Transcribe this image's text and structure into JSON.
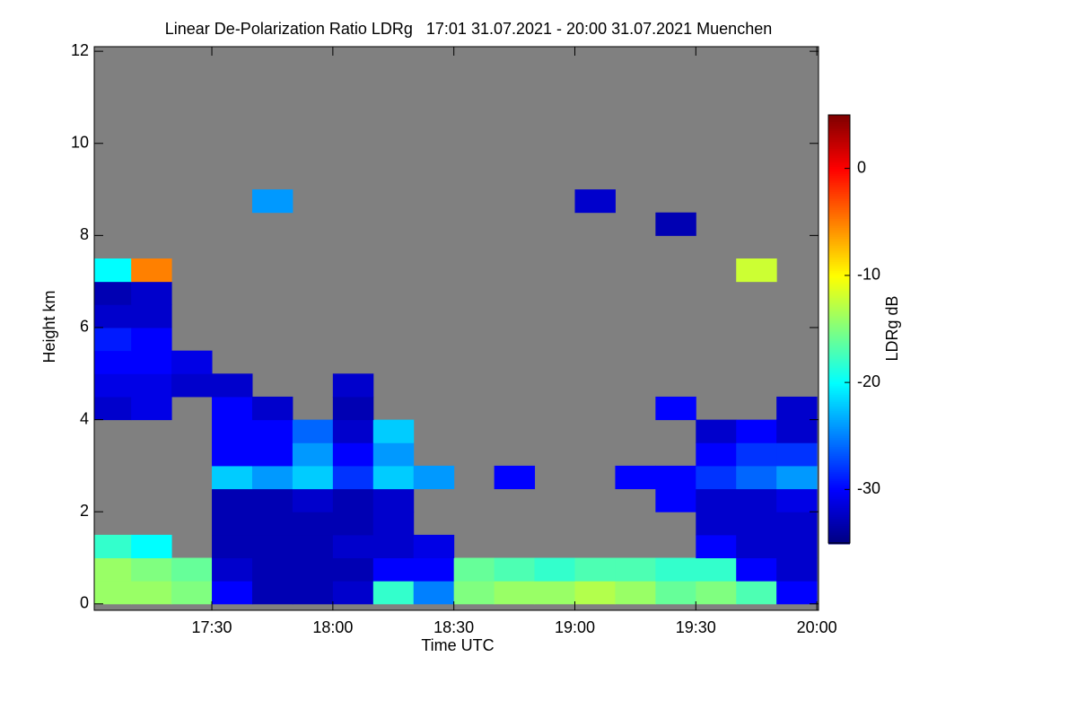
{
  "chart_data": {
    "type": "heatmap",
    "title": "Linear De-Polarization Ratio LDRg   17:01 31.07.2021 - 20:00 31.07.2021 Muenchen",
    "xlabel": "Time UTC",
    "ylabel": "Height km",
    "colorbar_label": "LDRg dB",
    "xlim": [
      17.014,
      20.007
    ],
    "ylim": [
      -0.14,
      12.1
    ],
    "xticks": [
      {
        "value": 17.5,
        "label": "17:30"
      },
      {
        "value": 18,
        "label": "18:00"
      },
      {
        "value": 18.5,
        "label": "18:30"
      },
      {
        "value": 19,
        "label": "19:00"
      },
      {
        "value": 19.5,
        "label": "19:30"
      },
      {
        "value": 20,
        "label": "20:00"
      }
    ],
    "yticks": [
      0,
      2,
      4,
      6,
      8,
      10,
      12
    ],
    "clim": [
      -35,
      5
    ],
    "cticks": [
      0,
      -10,
      -20,
      -30
    ],
    "colormap": "jet",
    "missing_color": "#808080",
    "xbins": [
      17.0,
      17.1667,
      17.3333,
      17.5,
      17.6667,
      17.8333,
      18.0,
      18.1667,
      18.3333,
      18.5,
      18.6667,
      18.8333,
      19.0,
      19.1667,
      19.3333,
      19.5,
      19.6667,
      19.8333,
      20.0
    ],
    "ybins": [
      0,
      0.5,
      1,
      1.5,
      2,
      2.5,
      3,
      3.5,
      4,
      4.5,
      5,
      5.5,
      6,
      6.5,
      7,
      7.5,
      8,
      8.5,
      9
    ],
    "z": [
      [
        -14,
        -14,
        -15,
        -30,
        -33,
        -33,
        -32,
        -18,
        -25,
        -15,
        -14,
        -14,
        -13,
        -14,
        -16,
        -15,
        -17,
        -30
      ],
      [
        -14,
        -15,
        -16,
        -32,
        -33,
        -33,
        -33,
        -30,
        -30,
        -16,
        -17,
        -18,
        -17,
        -17,
        -18,
        -18,
        -30,
        -32
      ],
      [
        -18,
        -20,
        null,
        -33,
        -33,
        -33,
        -32,
        -32,
        -31,
        null,
        null,
        null,
        null,
        null,
        null,
        -30,
        -32,
        -32
      ],
      [
        null,
        null,
        null,
        -33,
        -33,
        -33,
        -33,
        -32,
        null,
        null,
        null,
        null,
        null,
        null,
        null,
        -32,
        -32,
        -32
      ],
      [
        null,
        null,
        null,
        -33,
        -33,
        -32,
        -33,
        -32,
        null,
        null,
        null,
        null,
        null,
        null,
        -30,
        -32,
        -32,
        -31
      ],
      [
        null,
        null,
        null,
        -22,
        -24,
        -22,
        -28,
        -22,
        -24,
        null,
        -30,
        null,
        null,
        -30,
        -30,
        -28,
        -26,
        -24
      ],
      [
        null,
        null,
        null,
        -30,
        -30,
        -24,
        -30,
        -24,
        null,
        null,
        null,
        null,
        null,
        null,
        null,
        -30,
        -28,
        -28
      ],
      [
        null,
        null,
        null,
        -30,
        -30,
        -26,
        -32,
        -22,
        null,
        null,
        null,
        null,
        null,
        null,
        null,
        -32,
        -30,
        -32
      ],
      [
        -32,
        -31,
        null,
        -30,
        -32,
        null,
        -33,
        null,
        null,
        null,
        null,
        null,
        null,
        null,
        -30,
        null,
        null,
        -32
      ],
      [
        -31,
        -31,
        -32,
        -32,
        null,
        null,
        -32,
        null,
        null,
        null,
        null,
        null,
        null,
        null,
        null,
        null,
        null,
        null
      ],
      [
        -30,
        -30,
        -31,
        null,
        null,
        null,
        null,
        null,
        null,
        null,
        null,
        null,
        null,
        null,
        null,
        null,
        null,
        null
      ],
      [
        -29,
        -30,
        null,
        null,
        null,
        null,
        null,
        null,
        null,
        null,
        null,
        null,
        null,
        null,
        null,
        null,
        null,
        null
      ],
      [
        -32,
        -32,
        null,
        null,
        null,
        null,
        null,
        null,
        null,
        null,
        null,
        null,
        null,
        null,
        null,
        null,
        null,
        null
      ],
      [
        -33,
        -32,
        null,
        null,
        null,
        null,
        null,
        null,
        null,
        null,
        null,
        null,
        null,
        null,
        null,
        null,
        null,
        null
      ],
      [
        -20,
        -5,
        null,
        null,
        null,
        null,
        null,
        null,
        null,
        null,
        null,
        null,
        null,
        null,
        null,
        null,
        -12,
        null
      ],
      [
        null,
        null,
        null,
        null,
        null,
        null,
        null,
        null,
        null,
        null,
        null,
        null,
        null,
        null,
        null,
        null,
        null,
        null
      ],
      [
        null,
        null,
        null,
        null,
        null,
        null,
        null,
        null,
        null,
        null,
        null,
        null,
        null,
        null,
        -33,
        null,
        null,
        null
      ],
      [
        null,
        null,
        null,
        null,
        -24,
        null,
        null,
        null,
        null,
        null,
        null,
        null,
        -32,
        null,
        null,
        null,
        null,
        null
      ]
    ]
  }
}
